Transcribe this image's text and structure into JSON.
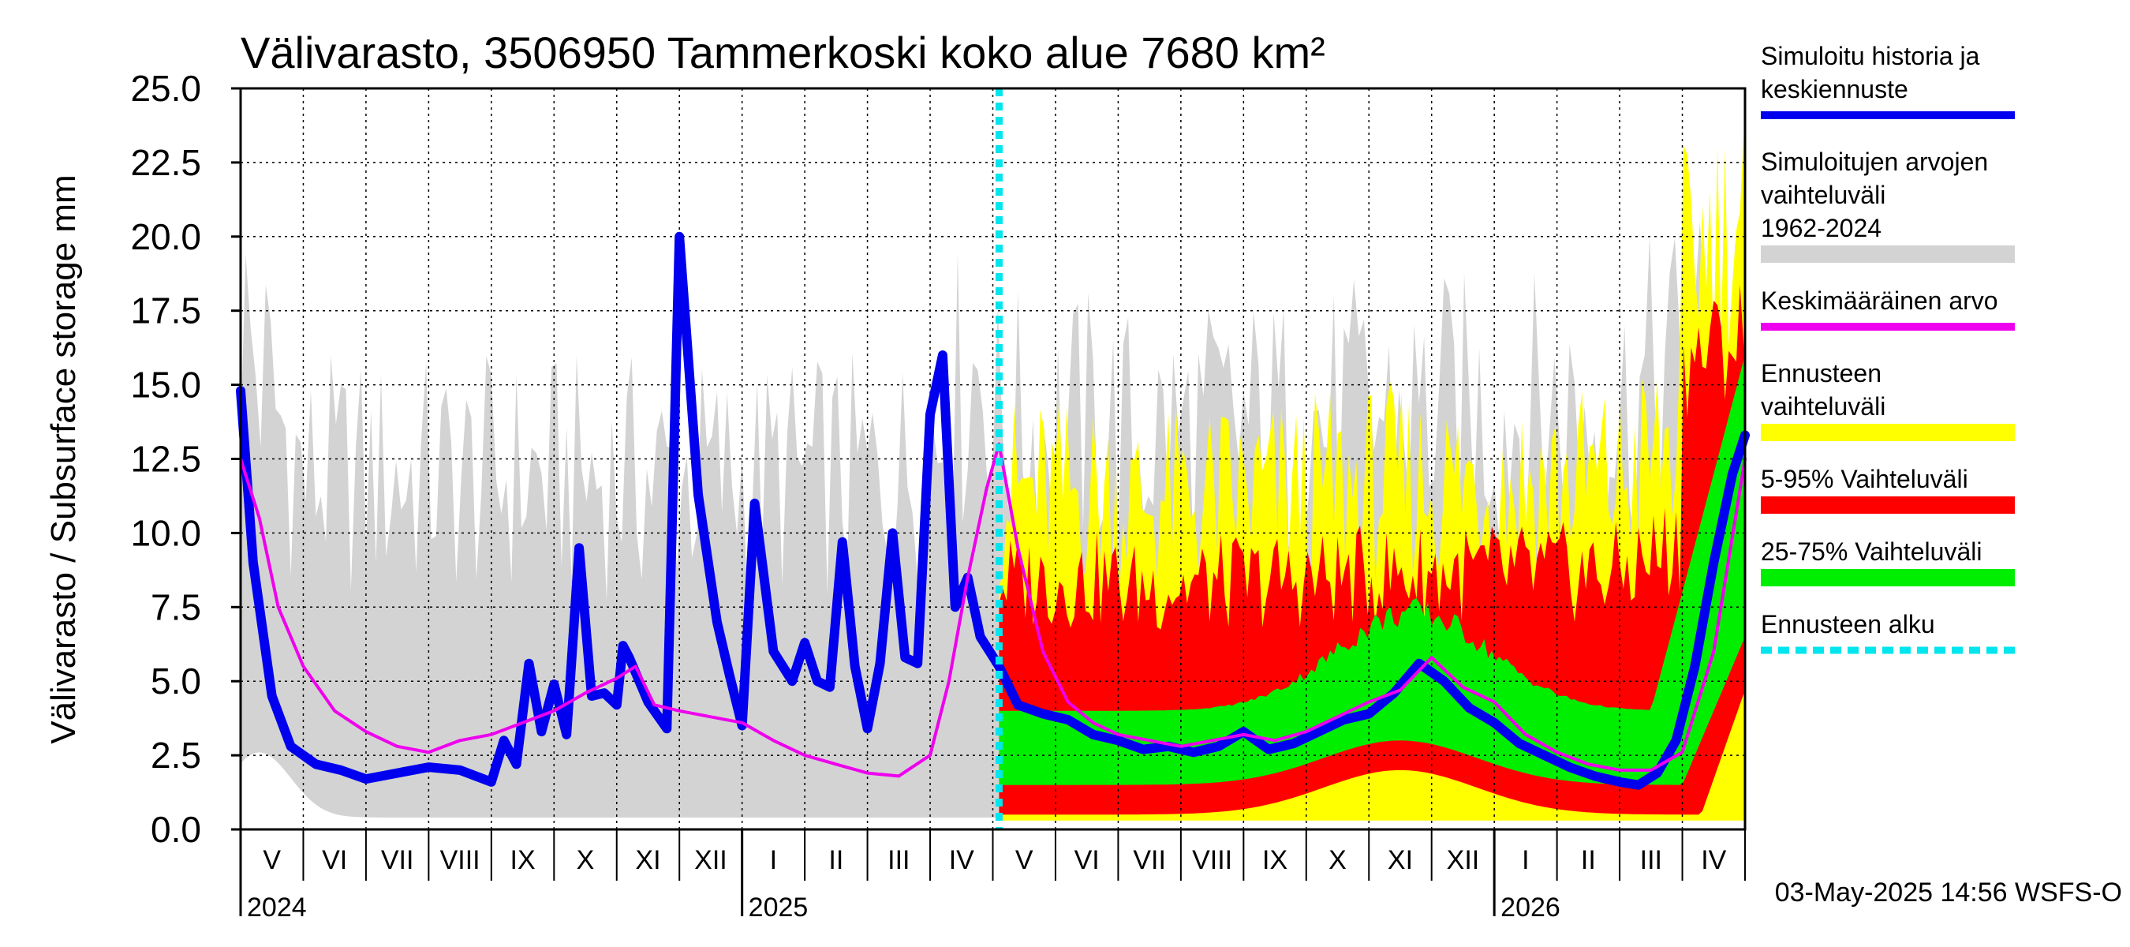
{
  "chart_data": {
    "type": "area",
    "title": "Välivarasto, 3506950 Tammerkoski koko alue 7680 km²",
    "ylabel": "Välivarasto / Subsurface storage  mm",
    "ylim": [
      0,
      25
    ],
    "yticks": [
      "0.0",
      "2.5",
      "5.0",
      "7.5",
      "10.0",
      "12.5",
      "15.0",
      "17.5",
      "20.0",
      "22.5",
      "25.0"
    ],
    "month_labels": [
      "V",
      "VI",
      "VII",
      "VIII",
      "IX",
      "X",
      "XI",
      "XII",
      "I",
      "II",
      "III",
      "IV",
      "V",
      "VI",
      "VII",
      "VIII",
      "IX",
      "X",
      "XI",
      "XII",
      "I",
      "II",
      "III",
      "IV"
    ],
    "year_labels": [
      {
        "label": "2024",
        "month_index": 0
      },
      {
        "label": "2025",
        "month_index": 8
      },
      {
        "label": "2026",
        "month_index": 20
      }
    ],
    "forecast_start_month": 12.1,
    "legend": [
      {
        "label": "Simuloitu historia ja keskiennuste",
        "color": "#0000ee",
        "style": "line"
      },
      {
        "label": "Simuloitujen arvojen vaihteluväli 1962-2024",
        "color": "#d3d3d3",
        "style": "band"
      },
      {
        "label": "Keskimääräinen arvo",
        "color": "#ee00ee",
        "style": "line"
      },
      {
        "label": "Ennusteen vaihteluväli",
        "color": "#ffff00",
        "style": "band"
      },
      {
        "label": "5-95% Vaihteluväli",
        "color": "#ff0000",
        "style": "band"
      },
      {
        "label": "25-75% Vaihteluväli",
        "color": "#00ee00",
        "style": "band"
      },
      {
        "label": "Ennusteen alku",
        "color": "#00e5ee",
        "style": "dashed"
      }
    ],
    "footer": "03-May-2025 14:56 WSFS-O",
    "series": [
      {
        "name": "Simuloitu historia ja keskiennuste",
        "x": [
          0,
          0.2,
          0.5,
          0.8,
          1.2,
          1.6,
          2,
          2.5,
          3,
          3.5,
          4,
          4.2,
          4.4,
          4.6,
          4.8,
          5,
          5.2,
          5.4,
          5.6,
          5.8,
          6,
          6.1,
          6.2,
          6.5,
          6.8,
          7,
          7.3,
          7.6,
          7.8,
          8,
          8.2,
          8.5,
          8.8,
          9,
          9.2,
          9.4,
          9.6,
          9.8,
          10,
          10.2,
          10.4,
          10.6,
          10.8,
          11,
          11.2,
          11.4,
          11.6,
          11.8,
          12.1,
          12.4,
          12.8,
          13.2,
          13.6,
          14,
          14.4,
          14.8,
          15.2,
          15.6,
          16,
          16.4,
          16.8,
          17.2,
          17.6,
          18,
          18.4,
          18.8,
          19.2,
          19.6,
          20,
          20.4,
          20.8,
          21.2,
          21.6,
          22,
          22.3,
          22.6,
          22.9,
          23.2,
          23.5,
          23.8,
          24
        ],
        "values": [
          14.8,
          9.0,
          4.5,
          2.8,
          2.2,
          2.0,
          1.7,
          1.9,
          2.1,
          2.0,
          1.6,
          3.0,
          2.2,
          5.6,
          3.3,
          4.9,
          3.2,
          9.5,
          4.5,
          4.6,
          4.2,
          6.2,
          5.8,
          4.3,
          3.4,
          20.0,
          11.3,
          7.0,
          5.2,
          3.5,
          11.0,
          6.0,
          5.0,
          6.3,
          5.0,
          4.8,
          9.7,
          5.5,
          3.4,
          5.6,
          10.0,
          5.8,
          5.6,
          14.0,
          16.0,
          7.5,
          8.5,
          6.5,
          5.5,
          4.2,
          3.9,
          3.7,
          3.2,
          3.0,
          2.7,
          2.8,
          2.6,
          2.8,
          3.3,
          2.7,
          2.9,
          3.3,
          3.7,
          3.9,
          4.6,
          5.6,
          5.0,
          4.1,
          3.6,
          2.9,
          2.5,
          2.1,
          1.8,
          1.6,
          1.5,
          1.9,
          3.0,
          5.5,
          9.0,
          12.0,
          13.3
        ]
      },
      {
        "name": "Keskimääräinen arvo",
        "x": [
          0,
          0.3,
          0.6,
          1,
          1.5,
          2,
          2.5,
          3,
          3.5,
          4,
          4.5,
          5,
          5.5,
          6,
          6.3,
          6.6,
          7,
          7.5,
          8,
          8.5,
          9,
          9.5,
          10,
          10.5,
          11,
          11.3,
          11.6,
          11.9,
          12.1,
          12.4,
          12.8,
          13.2,
          13.6,
          14,
          14.5,
          15,
          15.5,
          16,
          16.5,
          17,
          17.5,
          18,
          18.5,
          19,
          19.5,
          20,
          20.5,
          21,
          21.5,
          22,
          22.5,
          23,
          23.5,
          24
        ],
        "values": [
          12.5,
          10.5,
          7.5,
          5.5,
          4.0,
          3.3,
          2.8,
          2.6,
          3.0,
          3.2,
          3.6,
          4.0,
          4.6,
          5.1,
          5.5,
          4.2,
          4.0,
          3.8,
          3.6,
          3.0,
          2.5,
          2.2,
          1.9,
          1.8,
          2.5,
          5.0,
          8.5,
          11.5,
          13.0,
          9.5,
          6.0,
          4.3,
          3.6,
          3.2,
          3.0,
          2.8,
          3.0,
          3.2,
          3.0,
          3.3,
          3.8,
          4.3,
          4.7,
          5.8,
          4.8,
          4.3,
          3.2,
          2.6,
          2.2,
          2.0,
          2.0,
          2.6,
          6.0,
          12.5
        ]
      }
    ]
  }
}
